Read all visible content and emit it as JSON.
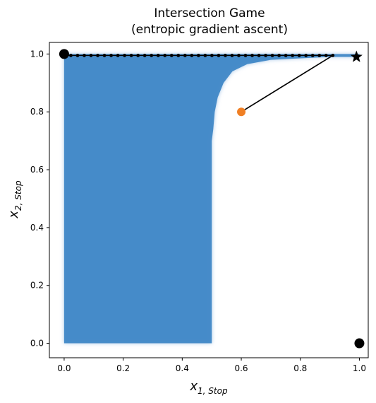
{
  "chart_data": {
    "type": "scatter",
    "title": "Intersection Game",
    "subtitle": "(entropic gradient ascent)",
    "xlabel": {
      "main": "x",
      "sub": "1, Stop"
    },
    "ylabel": {
      "main": "x",
      "sub": "2, Stop"
    },
    "xlim": [
      -0.05,
      1.03
    ],
    "ylim": [
      -0.05,
      1.04
    ],
    "xticks": [
      "0.0",
      "0.2",
      "0.4",
      "0.6",
      "0.8",
      "1.0"
    ],
    "yticks": [
      "0.0",
      "0.2",
      "0.4",
      "0.6",
      "0.8",
      "1.0"
    ],
    "grid": false,
    "legend": "none",
    "basin_region": {
      "color": "#3d85c6",
      "x_min": 0.0,
      "x_max": 1.0,
      "y_min": 0.0,
      "y_max": 1.0,
      "boundary": [
        [
          0.0,
          0.0
        ],
        [
          0.5,
          0.0
        ],
        [
          0.5,
          0.7
        ],
        [
          0.505,
          0.74
        ],
        [
          0.51,
          0.8
        ],
        [
          0.52,
          0.85
        ],
        [
          0.54,
          0.9
        ],
        [
          0.57,
          0.94
        ],
        [
          0.62,
          0.965
        ],
        [
          0.7,
          0.98
        ],
        [
          0.8,
          0.985
        ],
        [
          0.9,
          0.99
        ],
        [
          1.0,
          0.99
        ],
        [
          1.0,
          1.0
        ],
        [
          0.0,
          1.0
        ]
      ]
    },
    "trajectory": {
      "color": "#000000",
      "line_points": [
        [
          0.6,
          0.8
        ],
        [
          0.91,
          0.995
        ]
      ],
      "dots_y": 0.995,
      "dots_x_from": 0.0,
      "dots_x_to": 0.91,
      "dot_count": 41
    },
    "markers": [
      {
        "name": "start",
        "x": 0.6,
        "y": 0.8,
        "shape": "circle",
        "color": "#f07f24"
      },
      {
        "name": "end-left",
        "x": 0.0,
        "y": 1.0,
        "shape": "circle",
        "color": "#000000"
      },
      {
        "name": "end-right",
        "x": 1.0,
        "y": 0.0,
        "shape": "circle",
        "color": "#000000"
      },
      {
        "name": "star",
        "x": 0.99,
        "y": 0.99,
        "shape": "star",
        "color": "#000000"
      }
    ]
  }
}
